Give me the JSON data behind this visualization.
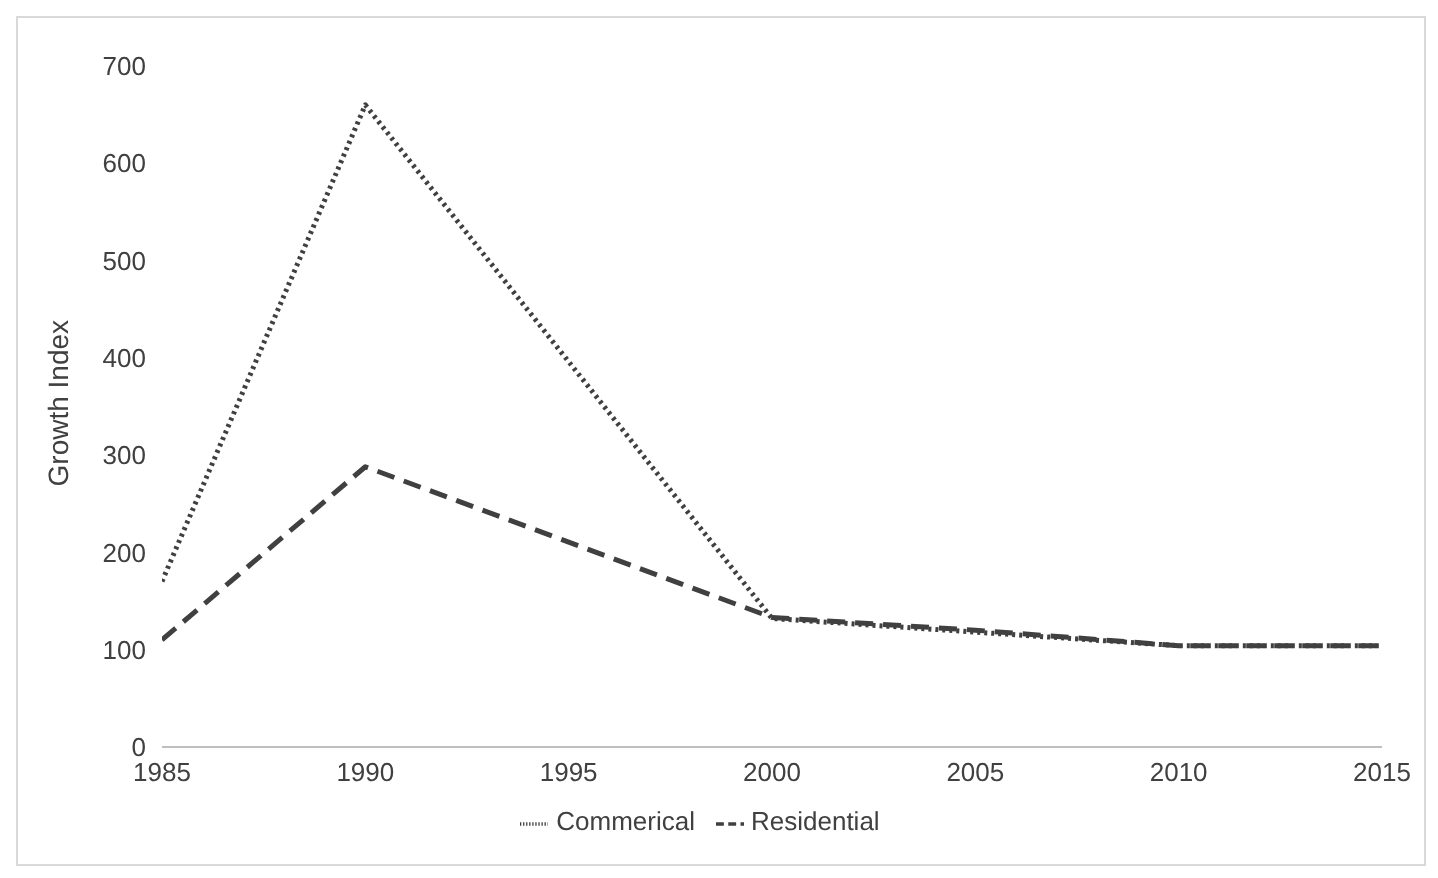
{
  "chart_data": {
    "type": "line",
    "ylabel": "Growth Index",
    "x": [
      1985,
      1990,
      2000,
      2005,
      2010,
      2015
    ],
    "xlim": [
      1985,
      2015
    ],
    "xticks": [
      1985,
      1990,
      1995,
      2000,
      2005,
      2010,
      2015
    ],
    "ylim": [
      0,
      700
    ],
    "yticks": [
      0,
      100,
      200,
      300,
      400,
      500,
      600,
      700
    ],
    "grid": false,
    "legend": "bottom",
    "marker": "none",
    "series": [
      {
        "name": "Commerical",
        "color": "#404040",
        "line_style": "dotted",
        "values": [
          170,
          660,
          132,
          118,
          104,
          104
        ]
      },
      {
        "name": "Residential",
        "color": "#404040",
        "line_style": "dashed",
        "values": [
          110,
          288,
          133,
          120,
          104,
          104
        ]
      }
    ]
  }
}
